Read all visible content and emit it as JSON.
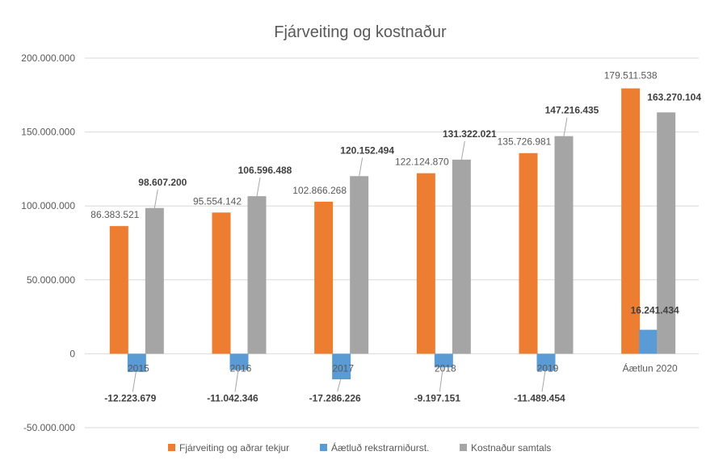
{
  "chart_data": {
    "type": "bar",
    "title": "Fjárveiting og kostnaður",
    "categories": [
      "2015",
      "2016",
      "2017",
      "2018",
      "2019",
      "Áætlun 2020"
    ],
    "series": [
      {
        "name": "Fjárveiting og aðrar tekjur",
        "color": "#ED7D31",
        "values": [
          86383521,
          95554142,
          102866268,
          122124870,
          135726981,
          179511538
        ],
        "labels": [
          "86.383.521",
          "95.554.142",
          "102.866.268",
          "122.124.870",
          "135.726.981",
          "179.511.538"
        ]
      },
      {
        "name": "Áætluð rekstrarniðurst.",
        "color": "#5B9BD5",
        "values": [
          -12223679,
          -11042346,
          -17286226,
          -9197151,
          -11489454,
          16241434
        ],
        "labels": [
          "-12.223.679",
          "-11.042.346",
          "-17.286.226",
          "-9.197.151",
          "-11.489.454",
          "16.241.434"
        ]
      },
      {
        "name": "Kostnaður samtals",
        "color": "#A5A5A5",
        "values": [
          98607200,
          106596488,
          120152494,
          131322021,
          147216435,
          163270104
        ],
        "labels": [
          "98.607.200",
          "106.596.488",
          "120.152.494",
          "131.322.021",
          "147.216.435",
          "163.270.104"
        ]
      }
    ],
    "yticks": [
      {
        "value": 200000000,
        "label": "200.000.000"
      },
      {
        "value": 150000000,
        "label": "150.000.000"
      },
      {
        "value": 100000000,
        "label": "100.000.000"
      },
      {
        "value": 50000000,
        "label": "50.000.000"
      },
      {
        "value": 0,
        "label": "0"
      },
      {
        "value": -50000000,
        "label": "-50.000.000"
      }
    ],
    "ylim": [
      -50000000,
      200000000
    ],
    "grid": true,
    "legend": "bottom"
  }
}
